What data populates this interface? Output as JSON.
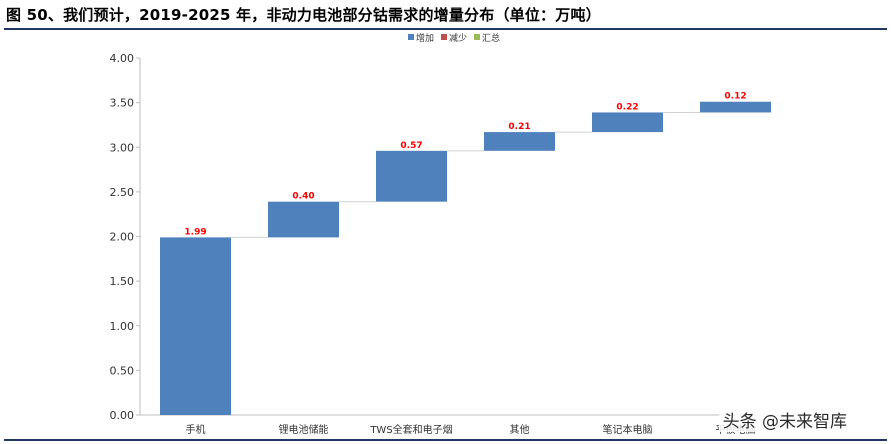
{
  "title": "图 50、我们预计，2019-2025 年，非动力电池部分钴需求的增量分布（单位：万吨）",
  "watermark": "头条 @未来智库",
  "chart_data": {
    "type": "bar",
    "subtype": "waterfall",
    "categories": [
      "手机",
      "锂电池储能",
      "TWS全套和电子烟",
      "其他",
      "笔记本电脑",
      "平板电脑"
    ],
    "values": [
      1.99,
      0.4,
      0.57,
      0.21,
      0.22,
      0.12
    ],
    "data_labels": [
      "1.99",
      "0.40",
      "0.57",
      "0.21",
      "0.22",
      "0.12"
    ],
    "ylim": [
      0,
      4.0
    ],
    "yticks": [
      "0.00",
      "0.50",
      "1.00",
      "1.50",
      "2.00",
      "2.50",
      "3.00",
      "3.50",
      "4.00"
    ],
    "legend": {
      "position": "top",
      "items": [
        {
          "label": "增加",
          "color": "#4f81bd"
        },
        {
          "label": "减少",
          "color": "#c0504d"
        },
        {
          "label": "汇总",
          "color": "#9bbb59"
        }
      ]
    },
    "bar_color": "#4f81bd",
    "label_color": "#ff0000",
    "grid": false
  }
}
